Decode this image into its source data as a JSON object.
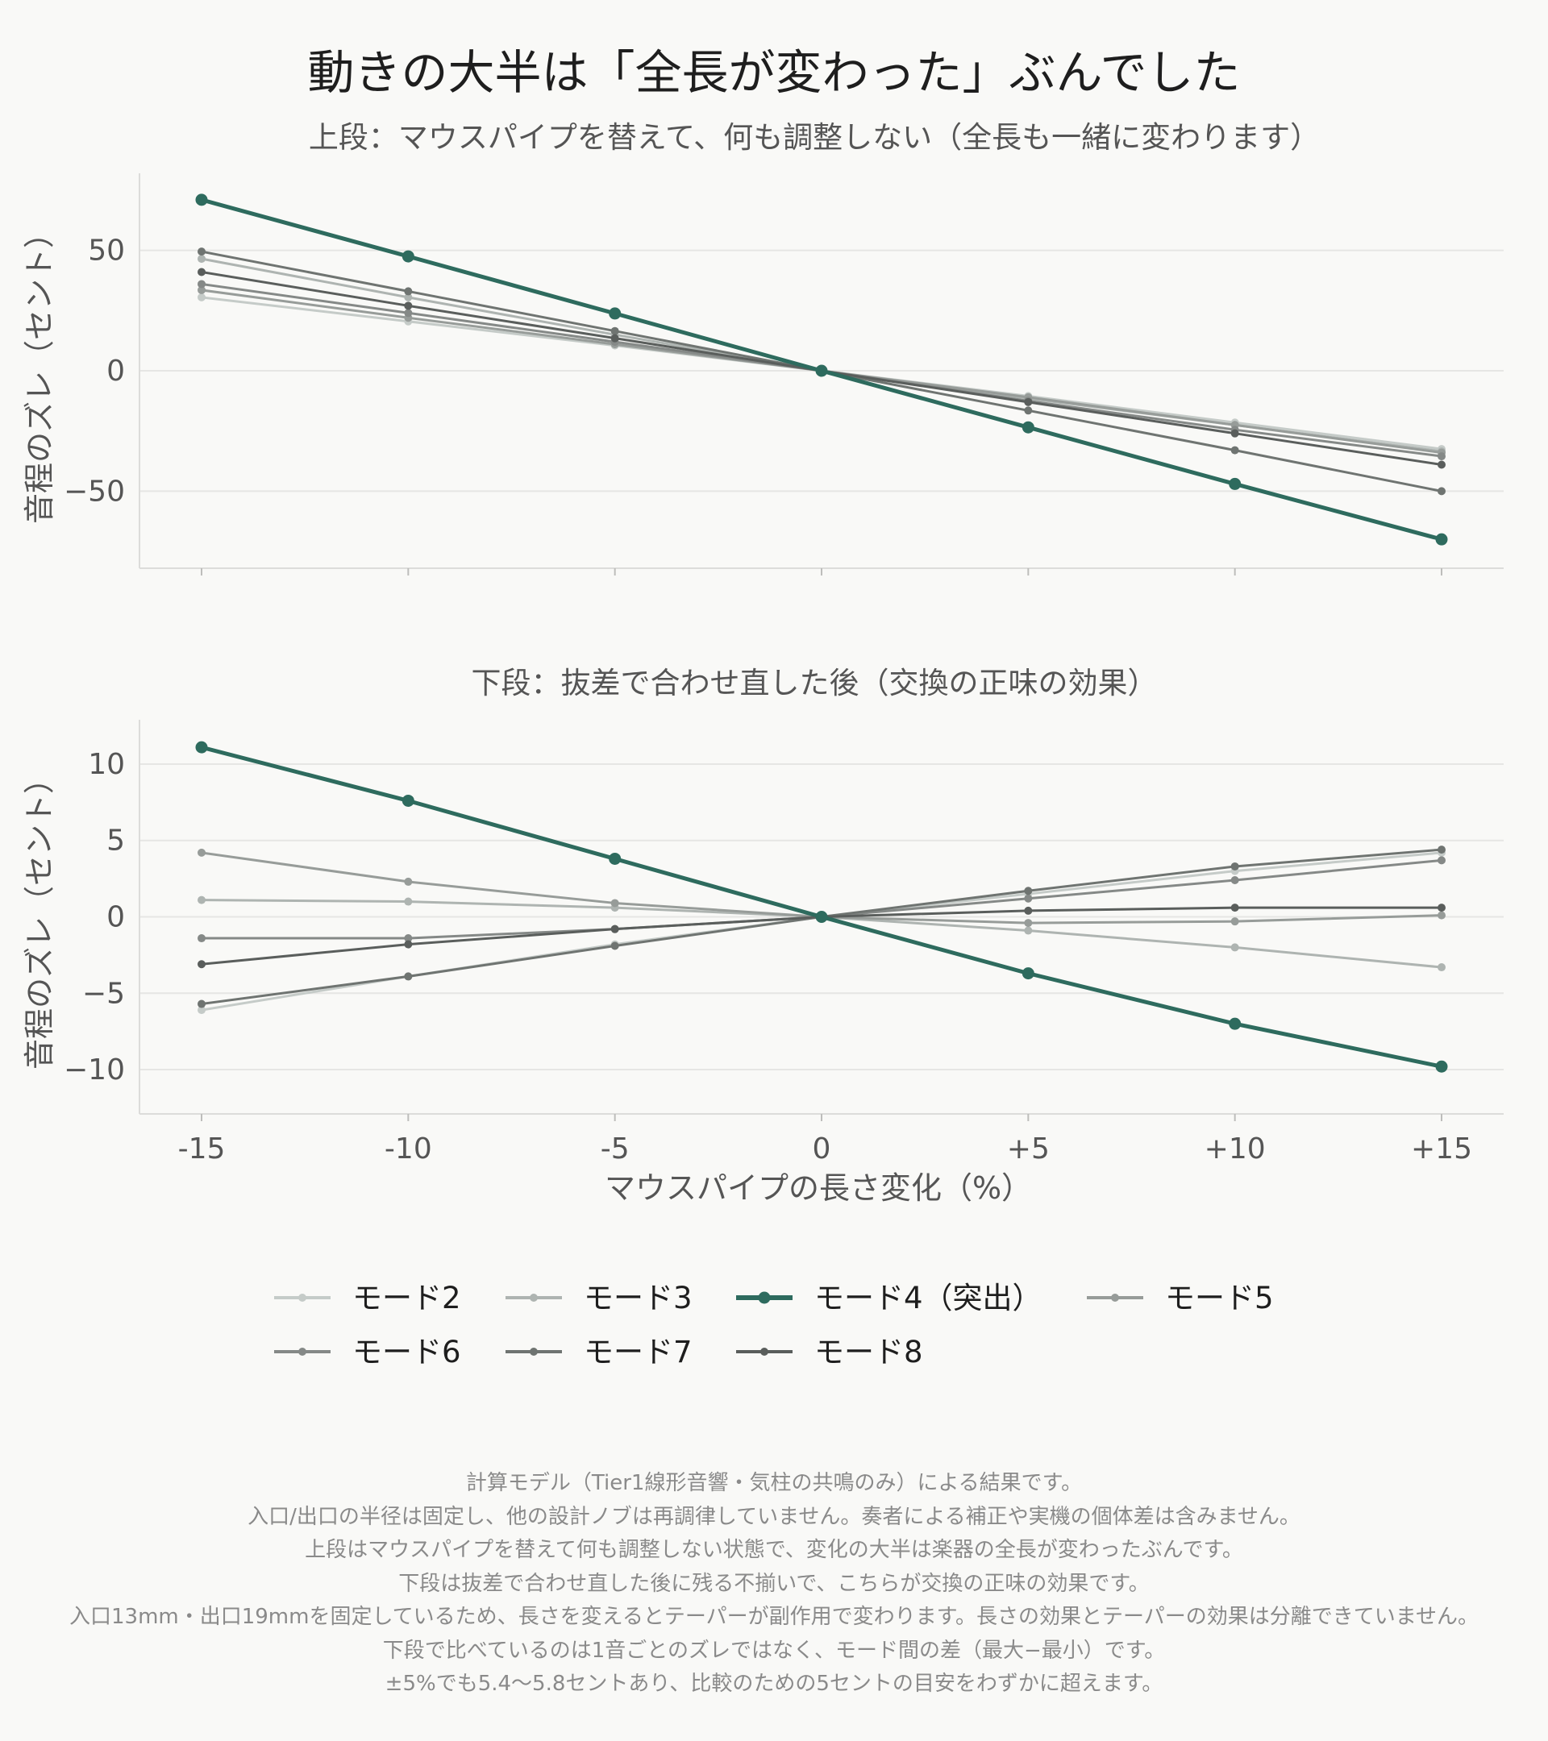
{
  "title": "動きの大半は「全長が変わった」ぶんでした",
  "x_axis_label": "マウスパイプの長さ変化（%）",
  "colors": {
    "highlight": "#2e6b5e",
    "mode2": "#c5cbc8",
    "mode3": "#aeb4b1",
    "mode5": "#979c99",
    "mode6": "#858987",
    "mode7": "#6f7471",
    "mode8": "#5a5e5c"
  },
  "chart_data": [
    {
      "type": "line",
      "title": "上段：マウスパイプを替えて、何も調整しない（全長も一緒に変わります）",
      "xlabel": "",
      "ylabel": "音程のズレ（セント）",
      "x": [
        -15,
        -10,
        -5,
        0,
        5,
        10,
        15
      ],
      "x_tick_labels": [
        "-15",
        "-10",
        "-5",
        "0",
        "+5",
        "+10",
        "+15"
      ],
      "y_ticks": [
        50,
        0,
        -50
      ],
      "y_tick_labels": [
        "50",
        "0",
        "−50"
      ],
      "ylim": [
        -82,
        82
      ],
      "grid": true,
      "series": [
        {
          "name": "モード2",
          "values": [
            30.5,
            20.5,
            10.5,
            0,
            -10.5,
            -21.5,
            -32.5
          ]
        },
        {
          "name": "モード3",
          "values": [
            46.5,
            30.5,
            15.0,
            0,
            -11.5,
            -22.5,
            -33.5
          ]
        },
        {
          "name": "モード4（突出）",
          "values": [
            71.0,
            47.5,
            23.8,
            0,
            -23.5,
            -47.0,
            -70.0
          ]
        },
        {
          "name": "モード5",
          "values": [
            33.5,
            22.0,
            11.0,
            0,
            -11.0,
            -22.5,
            -34.0
          ]
        },
        {
          "name": "モード6",
          "values": [
            36.0,
            24.0,
            12.0,
            0,
            -12.5,
            -24.5,
            -35.5
          ]
        },
        {
          "name": "モード7",
          "values": [
            49.5,
            33.0,
            16.5,
            0,
            -16.5,
            -33.0,
            -50.0
          ]
        },
        {
          "name": "モード8",
          "values": [
            41.0,
            27.0,
            13.5,
            0,
            -13.0,
            -26.0,
            -39.0
          ]
        }
      ]
    },
    {
      "type": "line",
      "title": "下段：抜差で合わせ直した後（交換の正味の効果）",
      "xlabel": "マウスパイプの長さ変化（%）",
      "ylabel": "音程のズレ（セント）",
      "x": [
        -15,
        -10,
        -5,
        0,
        5,
        10,
        15
      ],
      "x_tick_labels": [
        "-15",
        "-10",
        "-5",
        "0",
        "+5",
        "+10",
        "+15"
      ],
      "y_ticks": [
        10,
        5,
        0,
        -5,
        -10
      ],
      "y_tick_labels": [
        "10",
        "5",
        "0",
        "−5",
        "−10"
      ],
      "ylim": [
        -12.9,
        12.9
      ],
      "grid": true,
      "series": [
        {
          "name": "モード2",
          "values": [
            -6.1,
            -3.9,
            -1.8,
            0,
            1.5,
            3.0,
            4.2
          ]
        },
        {
          "name": "モード3",
          "values": [
            1.1,
            1.0,
            0.6,
            0,
            -0.9,
            -2.0,
            -3.3
          ]
        },
        {
          "name": "モード4（突出）",
          "values": [
            11.1,
            7.6,
            3.8,
            0,
            -3.7,
            -7.0,
            -9.8
          ]
        },
        {
          "name": "モード5",
          "values": [
            4.2,
            2.3,
            0.9,
            0,
            -0.4,
            -0.3,
            0.1
          ]
        },
        {
          "name": "モード6",
          "values": [
            -1.4,
            -1.4,
            -0.8,
            0,
            1.2,
            2.4,
            3.7
          ]
        },
        {
          "name": "モード7",
          "values": [
            -5.7,
            -3.9,
            -1.9,
            0,
            1.7,
            3.3,
            4.4
          ]
        },
        {
          "name": "モード8",
          "values": [
            -3.1,
            -1.8,
            -0.8,
            0,
            0.4,
            0.6,
            0.6
          ]
        }
      ]
    }
  ],
  "legend": [
    "モード2",
    "モード3",
    "モード4（突出）",
    "モード5",
    "モード6",
    "モード7",
    "モード8"
  ],
  "footnotes": [
    "計算モデル（Tier1線形音響・気柱の共鳴のみ）による結果です。",
    "入口/出口の半径は固定し、他の設計ノブは再調律していません。奏者による補正や実機の個体差は含みません。",
    "上段はマウスパイプを替えて何も調整しない状態で、変化の大半は楽器の全長が変わったぶんです。",
    "下段は抜差で合わせ直した後に残る不揃いで、こちらが交換の正味の効果です。",
    "入口13mm・出口19mmを固定しているため、長さを変えるとテーパーが副作用で変わります。長さの効果とテーパーの効果は分離できていません。",
    "下段で比べているのは1音ごとのズレではなく、モード間の差（最大−最小）です。",
    "±5%でも5.4〜5.8セントあり、比較のための5セントの目安をわずかに超えます。"
  ]
}
